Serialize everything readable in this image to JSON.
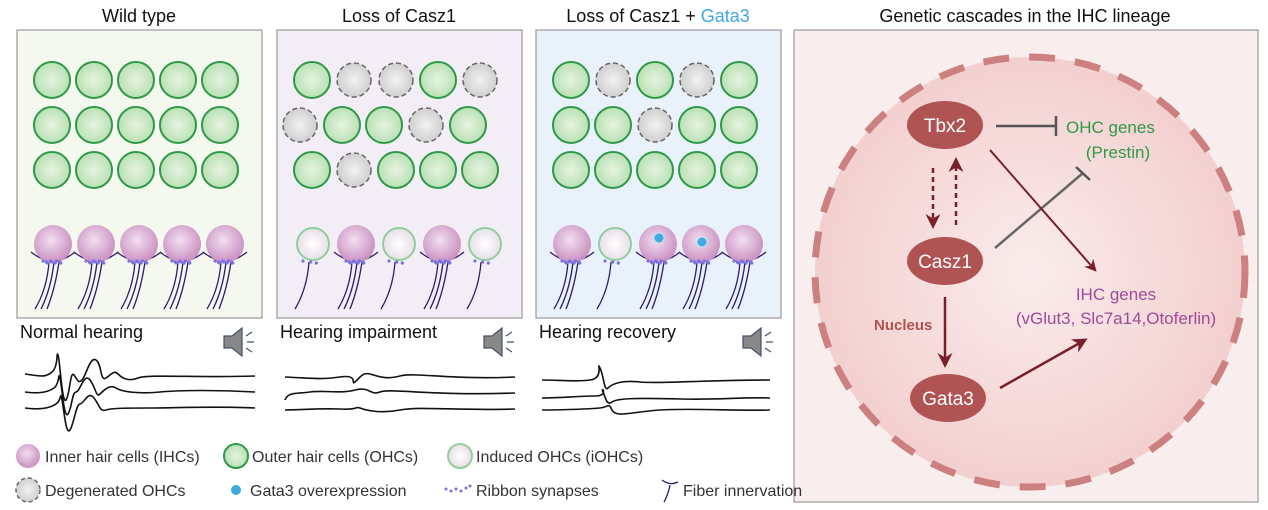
{
  "panels": [
    {
      "title": "Wild type",
      "hearing": "Normal hearing",
      "bg": "#f4f8ee",
      "ohc_rows": [
        [
          "g",
          "g",
          "g",
          "g",
          "g"
        ],
        [
          "g",
          "g",
          "g",
          "g",
          "g"
        ],
        [
          "g",
          "g",
          "g",
          "g",
          "g"
        ]
      ],
      "ihc": [
        "ihc",
        "ihc",
        "ihc",
        "ihc",
        "ihc"
      ]
    },
    {
      "title": "Loss of Casz1",
      "hearing": "Hearing impairment",
      "bg": "#f3eef6",
      "ohc_rows": [
        [
          "g",
          "d",
          "d",
          "g",
          "d"
        ],
        [
          "d",
          "g",
          "g",
          "d",
          "g"
        ],
        [
          "g",
          "d",
          "g",
          "g",
          "g"
        ]
      ],
      "ihc": [
        "iohc",
        "ihc",
        "iohc",
        "ihc",
        "iohc"
      ]
    },
    {
      "title": "Loss of Casz1 + ",
      "title_accent": "Gata3",
      "hearing": "Hearing recovery",
      "bg": "#e9f1fa",
      "ohc_rows": [
        [
          "g",
          "d",
          "g",
          "d",
          "g"
        ],
        [
          "g",
          "g",
          "d",
          "g",
          "g"
        ],
        [
          "g",
          "g",
          "g",
          "g",
          "g"
        ]
      ],
      "ihc": [
        "ihc",
        "iohc",
        "ihc-gata3",
        "ihc-gata3",
        "ihc"
      ]
    }
  ],
  "cascade": {
    "title": "Genetic cascades in the IHC lineage",
    "nodes": {
      "tbx2": "Tbx2",
      "casz1": "Casz1",
      "gata3": "Gata3"
    },
    "ohc_genes": "OHC genes",
    "ohc_genes_detail": "(Prestin)",
    "ihc_genes": "IHC genes",
    "ihc_genes_detail": "(vGlut3, Slc7a14,Otoferlin)",
    "nucleus": "Nucleus"
  },
  "legend": {
    "ihc": "Inner hair cells (IHCs)",
    "ohc": "Outer hair cells (OHCs)",
    "iohc": "Induced OHCs (iOHCs)",
    "degenerated": "Degenerated OHCs",
    "gata3": "Gata3 overexpression",
    "ribbon": "Ribbon synapses",
    "fiber": "Fiber innervation"
  },
  "colors": {
    "ohc": "#2e9a48",
    "ihc": "#c98fc0",
    "gata3_accent": "#3fa9e0",
    "node": "#b05353",
    "ohc_text": "#2e9a48",
    "ihc_text": "#a04a9a",
    "nucleus_text": "#b05353",
    "fiber": "#2e1a6e",
    "ribbon": "#7a70e0"
  }
}
